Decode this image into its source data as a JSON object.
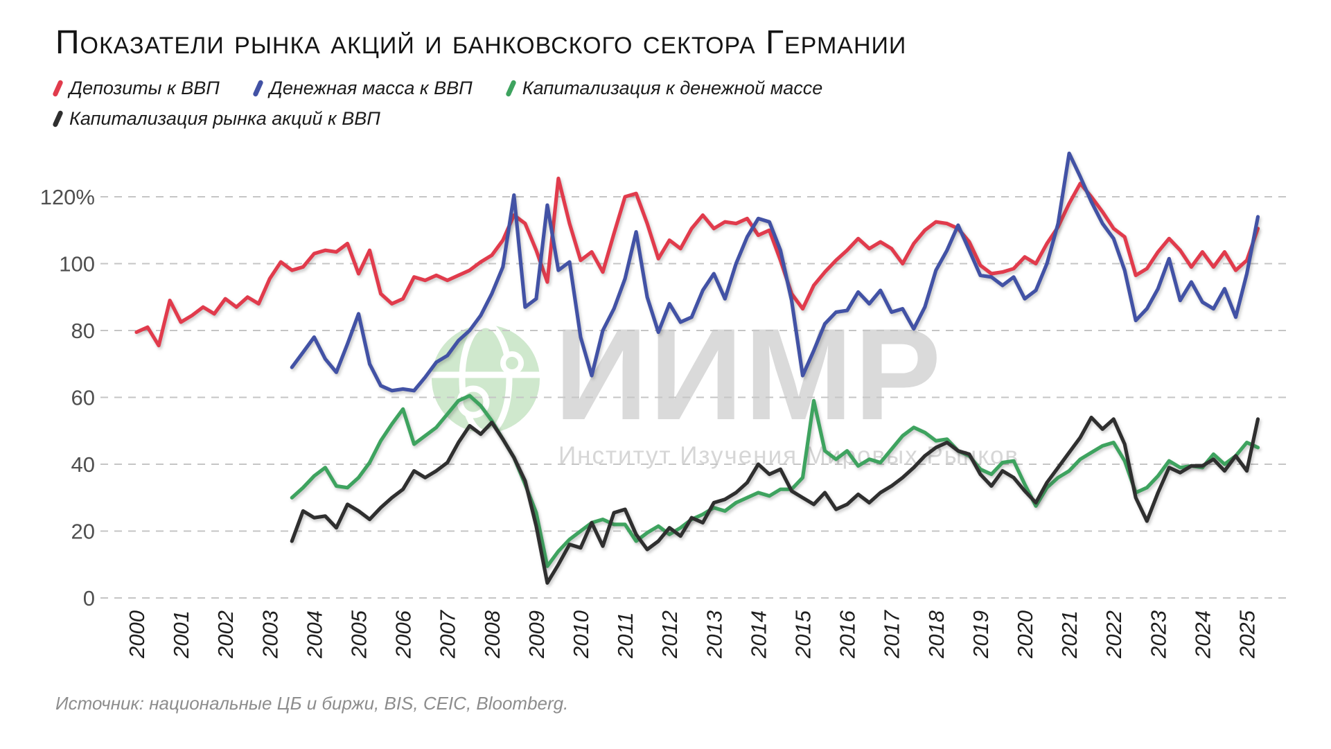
{
  "title": "Показатели рынка акций и банковского сектора Германии",
  "legend": {
    "items": [
      {
        "label": "Депозиты к ВВП",
        "color": "#e13b4c"
      },
      {
        "label": "Денежная масса к ВВП",
        "color": "#4252a5"
      },
      {
        "label": "Капитализация к денежной массе",
        "color": "#3ea35f"
      },
      {
        "label": "Капитализация рынка акций к ВВП",
        "color": "#2f2f2f"
      }
    ]
  },
  "watermark": {
    "acronym": "ИИМР",
    "subtitle": "Институт Изучения Мировых Рынков",
    "globe_color": "#cfe8cd"
  },
  "source": "Источник: национальные ЦБ и биржи, BIS, CEIC, Bloomberg.",
  "chart_data": {
    "type": "line",
    "title": "Показатели рынка акций и банковского сектора Германии",
    "xlabel": "",
    "ylabel": "",
    "x_ticks": [
      2000,
      2001,
      2002,
      2003,
      2004,
      2005,
      2006,
      2007,
      2008,
      2009,
      2010,
      2011,
      2012,
      2013,
      2014,
      2015,
      2016,
      2017,
      2018,
      2019,
      2020,
      2021,
      2022,
      2023,
      2024,
      2025
    ],
    "y_ticks": [
      0,
      20,
      40,
      60,
      80,
      100,
      120
    ],
    "y_tick_labels": [
      "0",
      "20",
      "40",
      "60",
      "80",
      "100",
      "120%"
    ],
    "ylim": [
      0,
      135
    ],
    "xlim": [
      1999.2,
      2026.1
    ],
    "grid": "horizontal-dashed",
    "legend_position": "top-left",
    "x_unit": "year (quarterly data)",
    "y_unit": "percent",
    "series": [
      {
        "id": "deposits-to-gdp",
        "name": "Депозиты к ВВП",
        "color": "#e13b4c",
        "start": 2000.0,
        "step": 0.25,
        "values": [
          79.5,
          81,
          75.5,
          89,
          82.5,
          84.5,
          87,
          85,
          89.5,
          87,
          90,
          88,
          95.5,
          100.5,
          98,
          99,
          103,
          104,
          103.5,
          106,
          97,
          104,
          91,
          88,
          89.5,
          96,
          95,
          96.5,
          95,
          96.5,
          98,
          100.5,
          102.5,
          107,
          114.5,
          112,
          104,
          94.5,
          125.5,
          112,
          101,
          103.5,
          97.5,
          109,
          120,
          121,
          112,
          101.5,
          107,
          104.5,
          110.5,
          114.5,
          110.5,
          112.5,
          112,
          113.5,
          108.5,
          110,
          101,
          91,
          86.5,
          93.5,
          97.5,
          101,
          104,
          107.5,
          104.5,
          106.5,
          104.5,
          100,
          106,
          110,
          112.5,
          112,
          110.5,
          106.5,
          99.5,
          97,
          97.5,
          98.5,
          102,
          100,
          106,
          111,
          118,
          124,
          120,
          115.5,
          110.5,
          108,
          96.5,
          98.5,
          103.5,
          107.5,
          104,
          99,
          103.5,
          99,
          103.5,
          98,
          101,
          110.5
        ]
      },
      {
        "id": "money-supply-to-gdp",
        "name": "Денежная масса к ВВП",
        "color": "#4252a5",
        "start": 2003.5,
        "step": 0.25,
        "values": [
          69,
          73.5,
          78,
          71.5,
          67.5,
          76,
          85,
          70,
          63.5,
          62,
          62.5,
          62,
          66,
          70.5,
          72.5,
          77,
          80,
          84.5,
          91,
          99,
          120.5,
          87,
          89.5,
          117.5,
          98,
          100.5,
          78,
          66.5,
          80,
          86.5,
          95.5,
          109.5,
          90,
          79.5,
          88,
          82.5,
          84,
          92,
          97,
          89.5,
          100,
          108,
          113.5,
          112.5,
          104,
          89,
          66.5,
          74,
          82,
          85.5,
          86,
          91.5,
          88,
          92,
          85.5,
          86.5,
          80.5,
          87,
          98,
          104,
          111.5,
          104,
          96.5,
          96,
          93.5,
          96,
          89.5,
          92,
          100,
          112,
          133,
          126,
          118.5,
          112,
          107.5,
          98,
          83,
          86.5,
          92.5,
          101.5,
          89,
          94.5,
          88.5,
          86.5,
          92.5,
          84,
          97,
          114
        ]
      },
      {
        "id": "cap-to-money-supply",
        "name": "Капитализация к денежной массе",
        "color": "#3ea35f",
        "start": 2003.5,
        "step": 0.25,
        "values": [
          30,
          33,
          36.5,
          39,
          33.5,
          33,
          36,
          40.5,
          47,
          52,
          56.5,
          46,
          48.5,
          51,
          55,
          59,
          60.5,
          57.5,
          53,
          47.5,
          42,
          34,
          25.5,
          9.5,
          14,
          17.5,
          20,
          22.5,
          23.5,
          22,
          22,
          17,
          19.5,
          21.5,
          19,
          21,
          23.5,
          25,
          27,
          26,
          28.5,
          30,
          31.5,
          30.5,
          32.5,
          32.5,
          36,
          59,
          44,
          41.5,
          44,
          39.5,
          41.5,
          40.5,
          44.5,
          48.5,
          51,
          49.5,
          47,
          47.5,
          44,
          42.5,
          38.5,
          37,
          40.5,
          41,
          34,
          27.5,
          33,
          36,
          38,
          41.5,
          43.5,
          45.5,
          46.5,
          41,
          31.5,
          33,
          36.5,
          41,
          39,
          39.5,
          39,
          43,
          40,
          42.5,
          46.5,
          45
        ]
      },
      {
        "id": "market-cap-to-gdp",
        "name": "Капитализация рынка акций к ВВП",
        "color": "#2f2f2f",
        "start": 2003.5,
        "step": 0.25,
        "values": [
          17,
          26,
          24,
          24.5,
          21,
          28,
          26,
          23.5,
          27,
          30,
          32.5,
          38,
          36,
          38,
          40.5,
          46.5,
          51.5,
          49,
          52.5,
          47.5,
          42,
          35,
          21.5,
          4.5,
          10,
          16,
          15,
          22.5,
          15.5,
          25.5,
          26.5,
          19,
          14.5,
          17,
          21,
          18.5,
          24,
          22.5,
          28.5,
          29.5,
          31.5,
          34.5,
          40,
          37,
          38.5,
          32,
          30,
          28,
          31.5,
          26.5,
          28,
          31,
          28.5,
          31.5,
          33.5,
          36,
          39,
          42.5,
          45,
          46.5,
          44,
          43,
          37,
          33.5,
          38,
          36,
          32,
          28.5,
          34.5,
          39,
          43.5,
          48,
          54,
          50.5,
          53.5,
          46,
          30,
          23,
          31.5,
          39,
          37.5,
          39.5,
          39.5,
          41.5,
          38,
          42.5,
          38,
          53.5
        ]
      }
    ]
  }
}
